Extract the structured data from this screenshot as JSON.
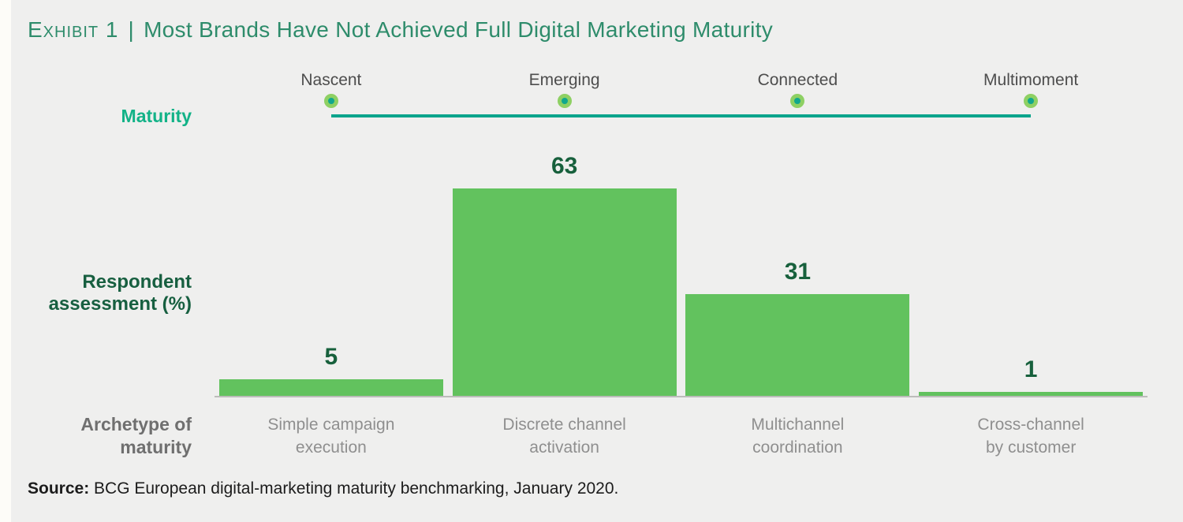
{
  "page": {
    "background_color": "#efefee",
    "left_strip_color": "#fdfcf8"
  },
  "header": {
    "exhibit_label": "Exhibit 1",
    "divider": "|",
    "title": "Most Brands Have Not Achieved Full Digital Marketing Maturity",
    "color": "#2e8c6b"
  },
  "maturity_scale": {
    "label": "Maturity",
    "label_color": "#12b287",
    "stages": [
      "Nascent",
      "Emerging",
      "Connected",
      "Multimoment"
    ],
    "line_color": "#0ba48c",
    "dot_fill_color": "#10a78d",
    "dot_ring_color": "#8ed063"
  },
  "chart_data": {
    "type": "bar",
    "categories": [
      "Simple campaign\nexecution",
      "Discrete channel\nactivation",
      "Multichannel\ncoordination",
      "Cross-channel\nby customer"
    ],
    "values": [
      5,
      63,
      31,
      1
    ],
    "value_labels": [
      "5",
      "63",
      "31",
      "1"
    ],
    "ylabel": "Respondent\nassessment (%)",
    "xlabel": "Archetype of\nmaturity",
    "title": "",
    "ylim": [
      0,
      70
    ],
    "grid": false,
    "legend": "none",
    "bar_color": "#62c25e",
    "value_label_color": "#17603c"
  },
  "source": {
    "prefix": "Source:",
    "text": "BCG European digital-marketing maturity benchmarking, January 2020."
  }
}
